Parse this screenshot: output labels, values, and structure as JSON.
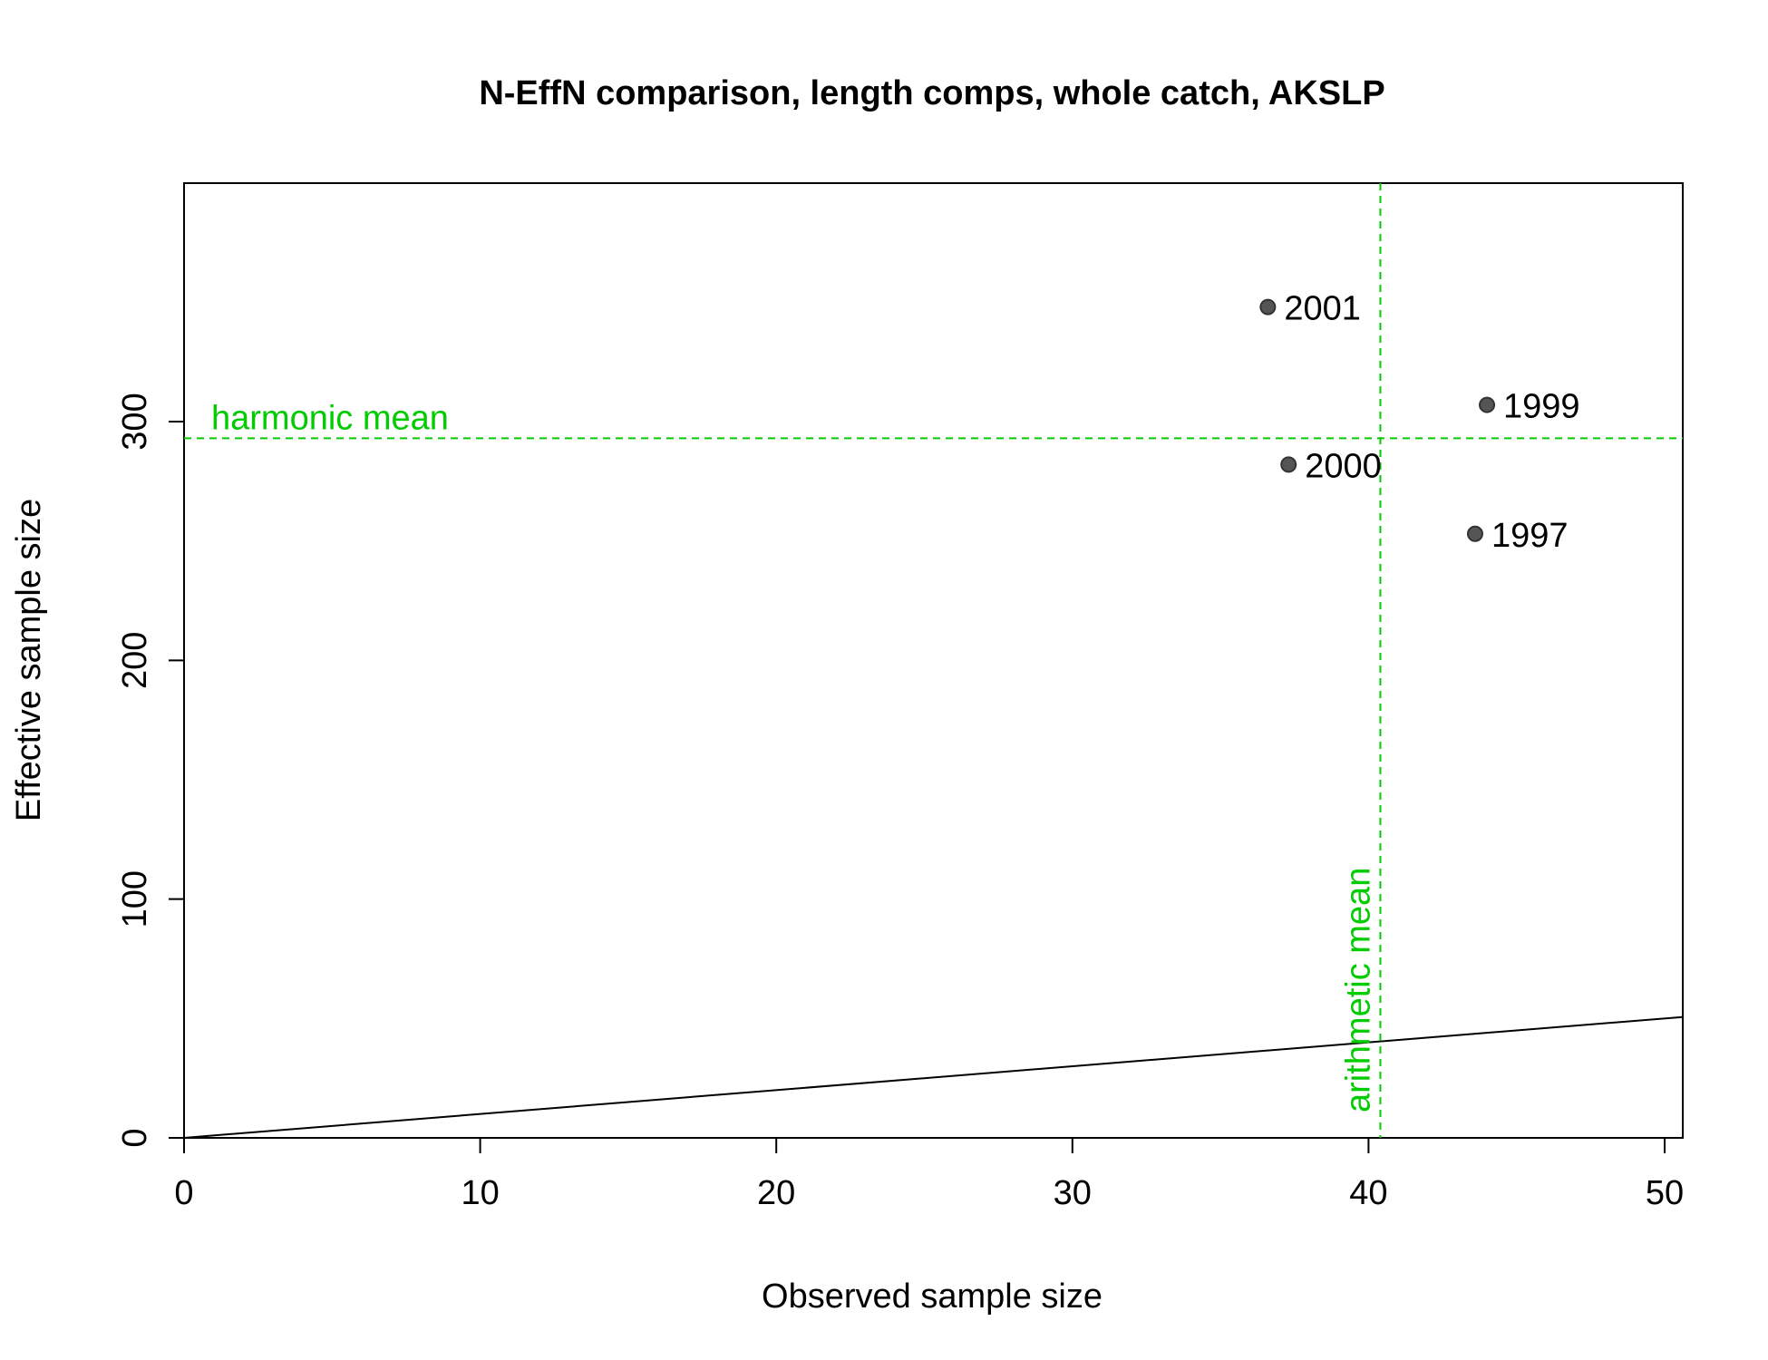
{
  "chart_data": {
    "type": "scatter",
    "title": "N-EffN comparison, length comps, whole catch, AKSLP",
    "xlabel": "Observed sample size",
    "ylabel": "Effective sample size",
    "xlim": [
      0,
      50.6
    ],
    "ylim": [
      0,
      400
    ],
    "x_ticks": [
      "0",
      "10",
      "20",
      "30",
      "40",
      "50"
    ],
    "y_ticks": [
      "0",
      "100",
      "200",
      "300"
    ],
    "points": [
      {
        "label": "2001",
        "x": 36.6,
        "y": 348
      },
      {
        "label": "1999",
        "x": 44.0,
        "y": 307
      },
      {
        "label": "2000",
        "x": 37.3,
        "y": 282
      },
      {
        "label": "1997",
        "x": 43.6,
        "y": 253
      }
    ],
    "one_to_one_line": {
      "from": [
        0,
        0
      ],
      "to": [
        50.6,
        50.6
      ]
    },
    "reference_lines": {
      "harmonic_mean": {
        "label": "harmonic mean",
        "y": 293
      },
      "arithmetic_mean": {
        "label": "arithmetic mean",
        "x": 40.4
      }
    },
    "colors": {
      "reference": "#00cc00",
      "point_fill": "#555555",
      "point_stroke": "#333333",
      "axis": "#000000"
    },
    "grid": false,
    "legend": "none"
  }
}
